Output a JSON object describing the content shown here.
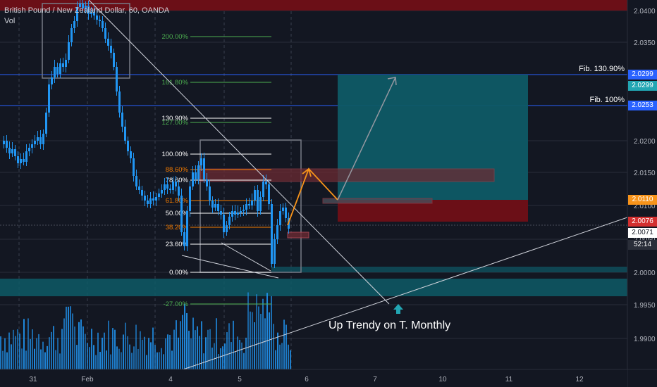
{
  "legend": {
    "symbol_line": "British Pound / New Zealand Dollar, 60, OANDA",
    "volume_label": "Vol"
  },
  "price_axis": {
    "ticks": [
      "2.0400",
      "2.0350",
      "2.0300",
      "2.0250",
      "2.0200",
      "2.0150",
      "2.0100",
      "2.0050",
      "2.0000",
      "1.9950",
      "1.9900"
    ],
    "labels": [
      {
        "text": "2.0299",
        "color": "#2962ff"
      },
      {
        "text": "2.0299",
        "color": "#22a6b3"
      },
      {
        "text": "2.0253",
        "color": "#2962ff"
      },
      {
        "text": "2.0110",
        "color": "#f7931a"
      },
      {
        "text": "2.0076",
        "color": "#d32f2f"
      },
      {
        "text": "2.0071",
        "color": "#ffffff"
      },
      {
        "text": "52:14",
        "color": "#2a2e39"
      }
    ]
  },
  "time_axis": {
    "ticks": [
      "31",
      "Feb",
      "4",
      "5",
      "6",
      "7",
      "10",
      "11",
      "12"
    ]
  },
  "fib_levels": [
    {
      "label": "200.00%",
      "color": "#4caf50"
    },
    {
      "label": "161.80%",
      "color": "#4caf50"
    },
    {
      "label": "130.90%",
      "color": "#ffffff"
    },
    {
      "label": "127.00%",
      "color": "#4caf50"
    },
    {
      "label": "100.00%",
      "color": "#ffffff"
    },
    {
      "label": "88.60%",
      "color": "#f57c00"
    },
    {
      "label": "78.60%",
      "color": "#ffffff"
    },
    {
      "label": "61.80%",
      "color": "#f57c00"
    },
    {
      "label": "50.00%",
      "color": "#ffffff"
    },
    {
      "label": "38.20%",
      "color": "#f57c00"
    },
    {
      "label": "23.60%",
      "color": "#ffffff"
    },
    {
      "label": "0.00%",
      "color": "#ffffff"
    },
    {
      "label": "-27.00%",
      "color": "#4caf50"
    }
  ],
  "fib_tags": {
    "fib_130": "Fib. 130.90%",
    "fib_100": "Fib. 100%"
  },
  "annotation": {
    "text": "Up Trendy on T. Monthly"
  },
  "colors": {
    "background": "#131722",
    "candle": "#2196f3",
    "volume": "#2196f3",
    "supply_zone": "#6b0f17",
    "target_zone": "#0e5a66",
    "trendline": "#ffffff",
    "projection": "#f7931a"
  }
}
